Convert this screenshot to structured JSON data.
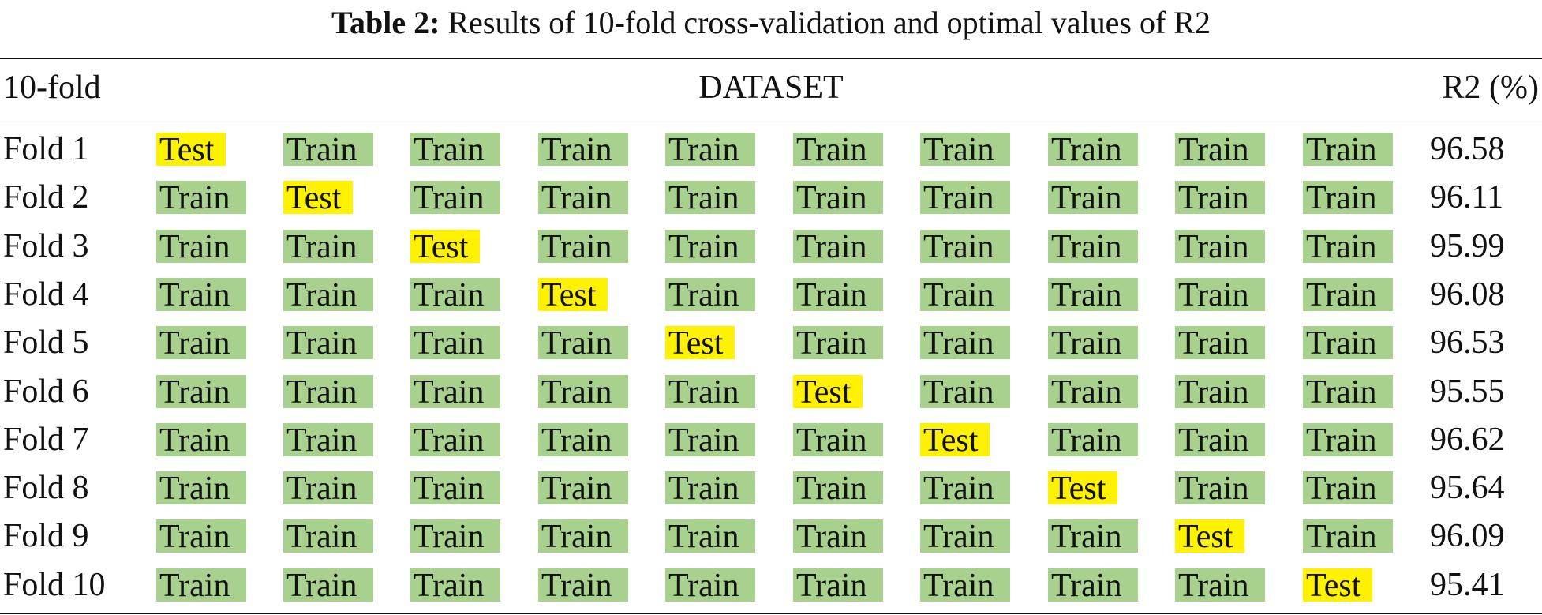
{
  "caption": {
    "label": "Table 2:",
    "text": "Results of 10-fold cross-validation and optimal values of R2"
  },
  "header": {
    "fold": "10-fold",
    "dataset": "DATASET",
    "r2": "R2 (%)"
  },
  "colors": {
    "train": "#a9d18e",
    "test": "#fff200"
  },
  "rows": [
    {
      "fold": "Fold 1",
      "cells": [
        "Test",
        "Train",
        "Train",
        "Train",
        "Train",
        "Train",
        "Train",
        "Train",
        "Train",
        "Train"
      ],
      "r2": "96.58"
    },
    {
      "fold": "Fold 2",
      "cells": [
        "Train",
        "Test",
        "Train",
        "Train",
        "Train",
        "Train",
        "Train",
        "Train",
        "Train",
        "Train"
      ],
      "r2": "96.11"
    },
    {
      "fold": "Fold 3",
      "cells": [
        "Train",
        "Train",
        "Test",
        "Train",
        "Train",
        "Train",
        "Train",
        "Train",
        "Train",
        "Train"
      ],
      "r2": "95.99"
    },
    {
      "fold": "Fold 4",
      "cells": [
        "Train",
        "Train",
        "Train",
        "Test",
        "Train",
        "Train",
        "Train",
        "Train",
        "Train",
        "Train"
      ],
      "r2": "96.08"
    },
    {
      "fold": "Fold 5",
      "cells": [
        "Train",
        "Train",
        "Train",
        "Train",
        "Test",
        "Train",
        "Train",
        "Train",
        "Train",
        "Train"
      ],
      "r2": "96.53"
    },
    {
      "fold": "Fold 6",
      "cells": [
        "Train",
        "Train",
        "Train",
        "Train",
        "Train",
        "Test",
        "Train",
        "Train",
        "Train",
        "Train"
      ],
      "r2": "95.55"
    },
    {
      "fold": "Fold 7",
      "cells": [
        "Train",
        "Train",
        "Train",
        "Train",
        "Train",
        "Train",
        "Test",
        "Train",
        "Train",
        "Train"
      ],
      "r2": "96.62"
    },
    {
      "fold": "Fold 8",
      "cells": [
        "Train",
        "Train",
        "Train",
        "Train",
        "Train",
        "Train",
        "Train",
        "Test",
        "Train",
        "Train"
      ],
      "r2": "95.64"
    },
    {
      "fold": "Fold 9",
      "cells": [
        "Train",
        "Train",
        "Train",
        "Train",
        "Train",
        "Train",
        "Train",
        "Train",
        "Test",
        "Train"
      ],
      "r2": "96.09"
    },
    {
      "fold": "Fold 10",
      "cells": [
        "Train",
        "Train",
        "Train",
        "Train",
        "Train",
        "Train",
        "Train",
        "Train",
        "Train",
        "Test"
      ],
      "r2": "95.41"
    }
  ]
}
